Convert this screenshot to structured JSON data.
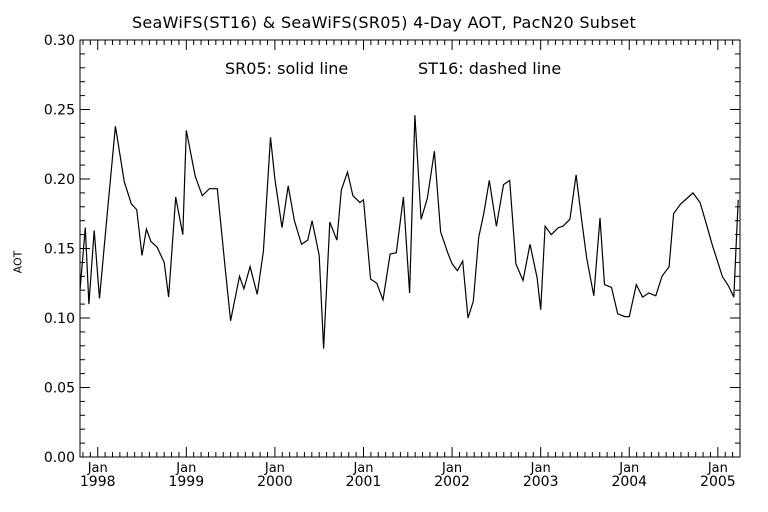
{
  "chart_data": {
    "type": "line",
    "title": "SeaWiFS(ST16) & SeaWiFS(SR05) 4-Day AOT, PacN20 Subset",
    "annotation_left": "SR05: solid line",
    "annotation_right": "ST16: dashed line",
    "ylabel": "AOT",
    "xlabel": "",
    "ylim": [
      0.0,
      0.3
    ],
    "xlim": [
      1997.8,
      2005.25
    ],
    "y_ticks": [
      "0.00",
      "0.05",
      "0.10",
      "0.15",
      "0.20",
      "0.25",
      "0.30"
    ],
    "x_ticks": [
      {
        "month": "Jan",
        "year": "1998",
        "x": 1998.0
      },
      {
        "month": "Jan",
        "year": "1999",
        "x": 1999.0
      },
      {
        "month": "Jan",
        "year": "2000",
        "x": 2000.0
      },
      {
        "month": "Jan",
        "year": "2001",
        "x": 2001.0
      },
      {
        "month": "Jan",
        "year": "2002",
        "x": 2002.0
      },
      {
        "month": "Jan",
        "year": "2003",
        "x": 2003.0
      },
      {
        "month": "Jan",
        "year": "2004",
        "x": 2004.0
      },
      {
        "month": "Jan",
        "year": "2005",
        "x": 2005.0
      }
    ],
    "grid": false,
    "series": [
      {
        "name": "SR05",
        "style": "solid",
        "x": [
          1997.8,
          1997.86,
          1997.9,
          1997.96,
          1998.02,
          1998.1,
          1998.2,
          1998.3,
          1998.38,
          1998.44,
          1998.5,
          1998.55,
          1998.6,
          1998.67,
          1998.75,
          1998.8,
          1998.88,
          1998.96,
          1999.0,
          1999.1,
          1999.18,
          1999.26,
          1999.35,
          1999.44,
          1999.5,
          1999.6,
          1999.65,
          1999.72,
          1999.8,
          1999.87,
          1999.95,
          2000.0,
          2000.08,
          2000.15,
          2000.22,
          2000.3,
          2000.37,
          2000.42,
          2000.5,
          2000.55,
          2000.62,
          2000.7,
          2000.75,
          2000.82,
          2000.88,
          2000.96,
          2001.0,
          2001.08,
          2001.15,
          2001.22,
          2001.3,
          2001.37,
          2001.45,
          2001.52,
          2001.58,
          2001.65,
          2001.72,
          2001.8,
          2001.87,
          2001.95,
          2002.0,
          2002.06,
          2002.12,
          2002.18,
          2002.24,
          2002.3,
          2002.36,
          2002.42,
          2002.5,
          2002.58,
          2002.65,
          2002.72,
          2002.8,
          2002.88,
          2002.96,
          2003.0,
          2003.05,
          2003.12,
          2003.2,
          2003.25,
          2003.33,
          2003.4,
          2003.46,
          2003.52,
          2003.6,
          2003.67,
          2003.72,
          2003.8,
          2003.87,
          2003.95,
          2004.0,
          2004.08,
          2004.15,
          2004.22,
          2004.3,
          2004.37,
          2004.45,
          2004.5,
          2004.58,
          2004.65,
          2004.72,
          2004.8,
          2004.86,
          2004.94,
          2005.0,
          2005.05,
          2005.12,
          2005.18,
          2005.23
        ],
        "values": [
          0.12,
          0.165,
          0.11,
          0.163,
          0.114,
          0.17,
          0.238,
          0.198,
          0.182,
          0.178,
          0.145,
          0.164,
          0.155,
          0.151,
          0.14,
          0.115,
          0.187,
          0.16,
          0.235,
          0.202,
          0.188,
          0.193,
          0.193,
          0.135,
          0.098,
          0.13,
          0.121,
          0.137,
          0.117,
          0.148,
          0.23,
          0.2,
          0.165,
          0.195,
          0.17,
          0.153,
          0.156,
          0.17,
          0.145,
          0.078,
          0.169,
          0.156,
          0.192,
          0.205,
          0.188,
          0.183,
          0.185,
          0.128,
          0.125,
          0.113,
          0.146,
          0.147,
          0.187,
          0.118,
          0.246,
          0.171,
          0.186,
          0.22,
          0.162,
          0.147,
          0.139,
          0.134,
          0.141,
          0.1,
          0.112,
          0.158,
          0.176,
          0.199,
          0.166,
          0.196,
          0.199,
          0.139,
          0.127,
          0.153,
          0.129,
          0.106,
          0.166,
          0.16,
          0.165,
          0.166,
          0.171,
          0.203,
          0.172,
          0.143,
          0.116,
          0.172,
          0.124,
          0.122,
          0.103,
          0.101,
          0.101,
          0.124,
          0.115,
          0.118,
          0.116,
          0.13,
          0.137,
          0.175,
          0.182,
          0.186,
          0.19,
          0.183,
          0.17,
          0.152,
          0.14,
          0.13,
          0.123,
          0.115,
          0.185
        ]
      }
    ]
  }
}
